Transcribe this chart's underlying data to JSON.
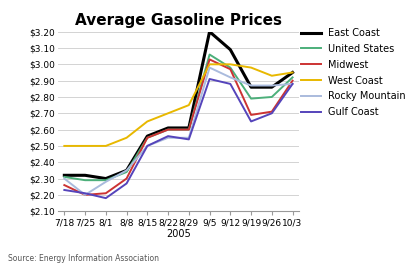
{
  "title": "Average Gasoline Prices",
  "xlabel": "2005",
  "source": "Source: Energy Information Association",
  "x_labels": [
    "7/18",
    "7/25",
    "8/1",
    "8/8",
    "8/15",
    "8/22",
    "8/29",
    "9/5",
    "9/12",
    "9/19",
    "9/26",
    "10/3"
  ],
  "ylim": [
    2.1,
    3.2
  ],
  "yticks": [
    2.1,
    2.2,
    2.3,
    2.4,
    2.5,
    2.6,
    2.7,
    2.8,
    2.9,
    3.0,
    3.1,
    3.2
  ],
  "series": [
    {
      "label": "East Coast",
      "color": "#000000",
      "linewidth": 2.2,
      "values": [
        2.32,
        2.32,
        2.3,
        2.35,
        2.56,
        2.61,
        2.61,
        3.2,
        3.09,
        2.86,
        2.86,
        2.95
      ]
    },
    {
      "label": "United States",
      "color": "#4CAF7A",
      "linewidth": 1.4,
      "values": [
        2.31,
        2.29,
        2.29,
        2.34,
        2.55,
        2.6,
        2.6,
        3.06,
        2.98,
        2.79,
        2.8,
        2.92
      ]
    },
    {
      "label": "Midwest",
      "color": "#CC3333",
      "linewidth": 1.4,
      "values": [
        2.26,
        2.2,
        2.21,
        2.3,
        2.55,
        2.6,
        2.6,
        3.03,
        2.97,
        2.69,
        2.71,
        2.9
      ]
    },
    {
      "label": "West Coast",
      "color": "#E8B800",
      "linewidth": 1.4,
      "values": [
        2.5,
        2.5,
        2.5,
        2.55,
        2.65,
        2.7,
        2.75,
        3.0,
        3.0,
        2.98,
        2.93,
        2.95
      ]
    },
    {
      "label": "Rocky Mountain",
      "color": "#AABBDD",
      "linewidth": 1.4,
      "values": [
        2.3,
        2.2,
        2.28,
        2.35,
        2.5,
        2.55,
        2.55,
        2.98,
        2.92,
        2.87,
        2.87,
        2.88
      ]
    },
    {
      "label": "Gulf Coast",
      "color": "#5544BB",
      "linewidth": 1.4,
      "values": [
        2.23,
        2.21,
        2.18,
        2.27,
        2.5,
        2.56,
        2.54,
        2.91,
        2.88,
        2.65,
        2.7,
        2.88
      ]
    }
  ],
  "legend_fontsize": 7,
  "tick_fontsize": 6.5,
  "title_fontsize": 11,
  "background_color": "#ffffff",
  "grid_color": "#cccccc"
}
